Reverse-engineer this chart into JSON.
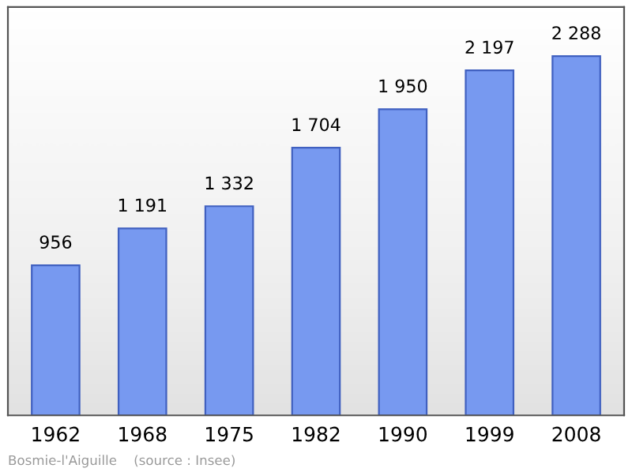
{
  "chart_data": {
    "type": "bar",
    "categories": [
      "1962",
      "1968",
      "1975",
      "1982",
      "1990",
      "1999",
      "2008"
    ],
    "values": [
      956,
      1191,
      1332,
      1704,
      1950,
      2197,
      2288
    ],
    "value_labels": [
      "956",
      "1 191",
      "1 332",
      "1 704",
      "1 950",
      "2 197",
      "2 288"
    ],
    "color": "#7799f0",
    "ylim": [
      0,
      2600
    ],
    "tick_labels": "x",
    "grid": false,
    "annotations": [
      "Bosmie-l'Aiguille    (source : Insee)"
    ]
  }
}
